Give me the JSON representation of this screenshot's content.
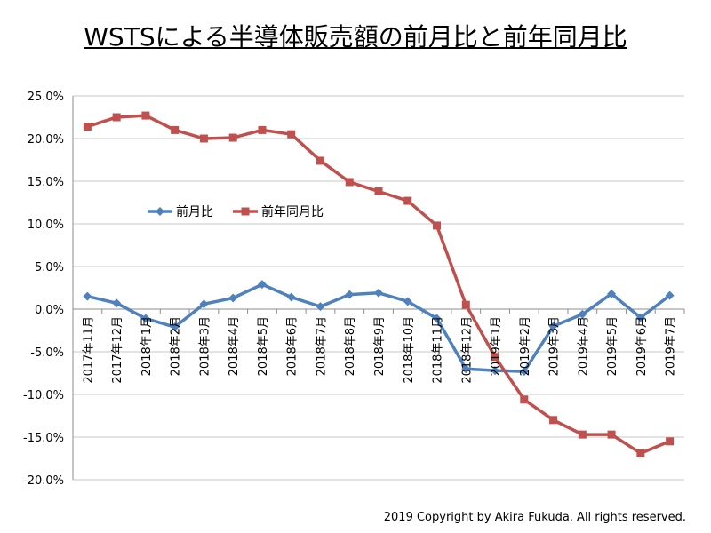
{
  "title": "WSTSによる半導体販売額の前月比と前年同月比",
  "copyright": "2019 Copyright by Akira Fukuda. All rights reserved.",
  "chart_data": {
    "type": "line",
    "title": "WSTSによる半導体販売額の前月比と前年同月比",
    "xlabel": "",
    "ylabel": "",
    "ylim": [
      -20,
      25
    ],
    "ytick_step": 5,
    "ytick_labels": [
      "25.0%",
      "20.0%",
      "15.0%",
      "10.0%",
      "5.0%",
      "0.0%",
      "-5.0%",
      "-10.0%",
      "-15.0%",
      "-20.0%"
    ],
    "grid": "horizontal",
    "legend_position": "middle-left",
    "categories": [
      "2017年11月",
      "2017年12月",
      "2018年1月",
      "2018年2月",
      "2018年3月",
      "2018年4月",
      "2018年5月",
      "2018年6月",
      "2018年7月",
      "2018年8月",
      "2018年9月",
      "2018年10月",
      "2018年11月",
      "2018年12月",
      "2019年1月",
      "2019年2月",
      "2019年3月",
      "2019年4月",
      "2019年5月",
      "2019年6月",
      "2019年7月"
    ],
    "series": [
      {
        "name": "前月比",
        "color": "#4F81BD",
        "marker": "diamond",
        "values": [
          1.5,
          0.7,
          -1.1,
          -2.1,
          0.6,
          1.3,
          2.9,
          1.4,
          0.3,
          1.7,
          1.9,
          0.9,
          -1.1,
          -7.0,
          -7.2,
          -7.3,
          -2.0,
          -0.6,
          1.8,
          -1.0,
          1.6
        ]
      },
      {
        "name": "前年同月比",
        "color": "#C0504D",
        "marker": "square",
        "values": [
          21.4,
          22.5,
          22.7,
          21.0,
          20.0,
          20.1,
          21.0,
          20.5,
          17.4,
          14.9,
          13.8,
          12.7,
          9.8,
          0.5,
          -5.6,
          -10.6,
          -13.0,
          -14.7,
          -14.7,
          -16.9,
          -15.5
        ]
      }
    ]
  }
}
